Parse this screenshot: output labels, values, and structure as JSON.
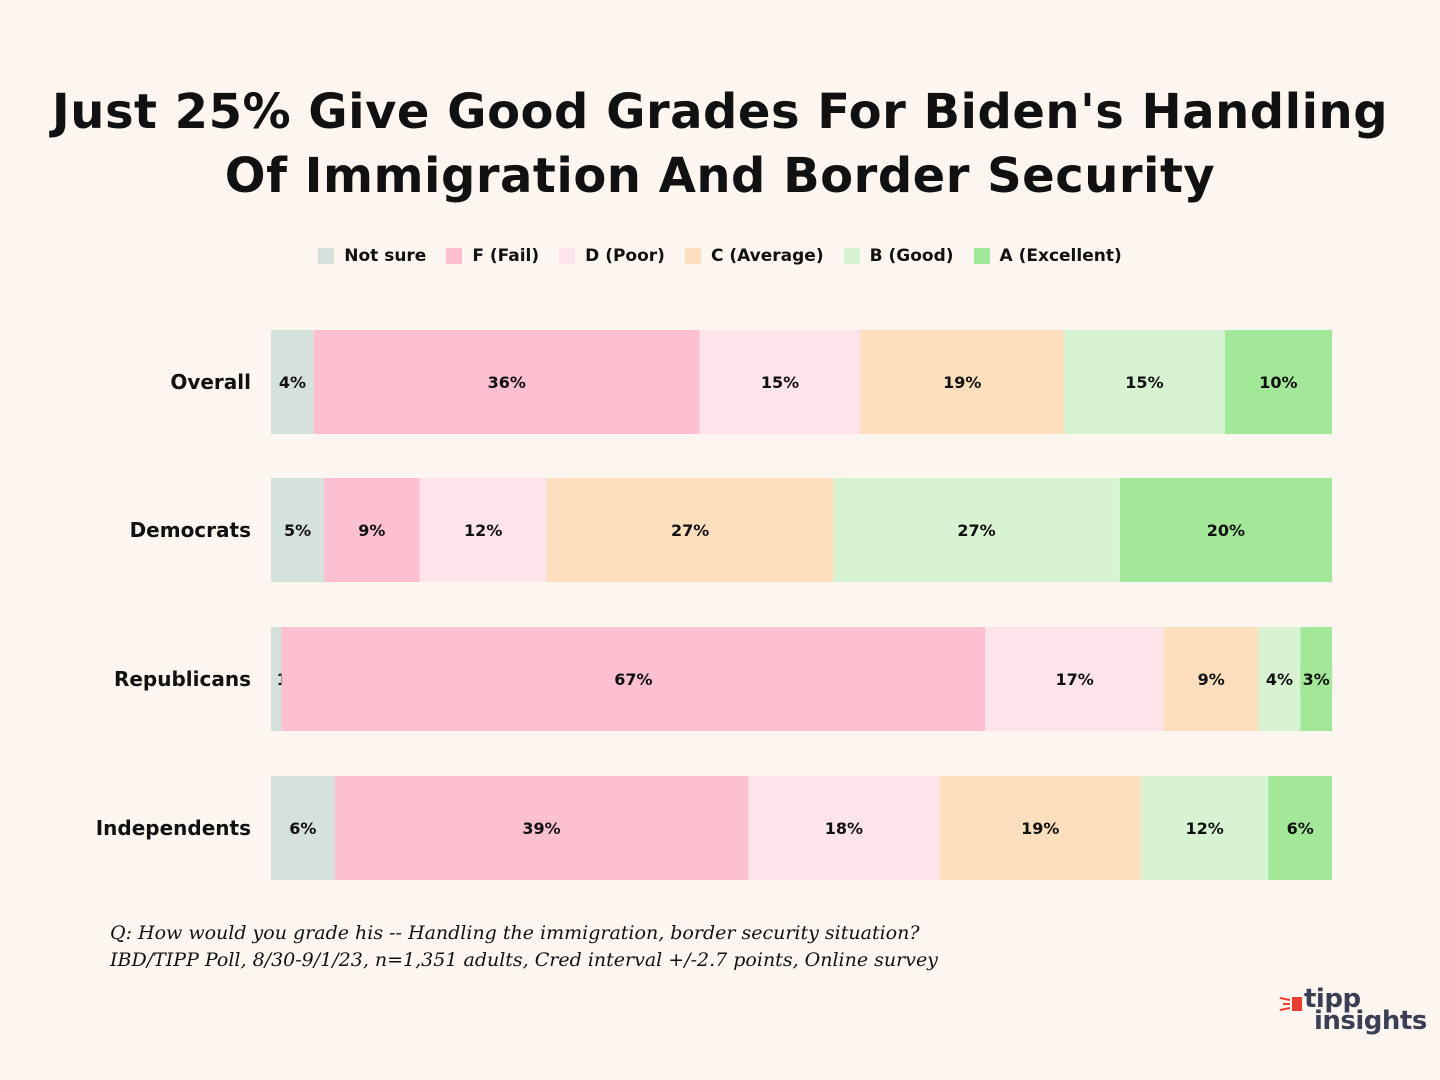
{
  "colors": {
    "background": "#fdf6f0",
    "not_sure": "#d5e1dc",
    "fail": "#fdc0d0",
    "poor": "#fde4ea",
    "average": "#fddfbd",
    "good": "#d7f3d2",
    "excellent": "#a3e898",
    "logo_text": "#3b3f56",
    "logo_mark": "#e8402f"
  },
  "chart_data": {
    "type": "bar",
    "orientation": "horizontal",
    "stacked": true,
    "title": "Just 25% Give Good Grades For Biden's Handling Of Immigration And Border Security",
    "title_lines": [
      "Just 25% Give Good Grades For Biden's Handling",
      "Of Immigration And Border Security"
    ],
    "categories": [
      "Overall",
      "Democrats",
      "Republicans",
      "Independents"
    ],
    "series": [
      {
        "name": "Not sure",
        "color": "#d5e1dc",
        "values": [
          4,
          5,
          1,
          6
        ]
      },
      {
        "name": "F (Fail)",
        "color": "#fdc0d0",
        "values": [
          36,
          9,
          67,
          39
        ]
      },
      {
        "name": "D (Poor)",
        "color": "#fde4ea",
        "values": [
          15,
          12,
          17,
          18
        ]
      },
      {
        "name": "C (Average)",
        "color": "#fddfbd",
        "values": [
          19,
          27,
          9,
          19
        ]
      },
      {
        "name": "B (Good)",
        "color": "#d7f3d2",
        "values": [
          15,
          27,
          4,
          12
        ]
      },
      {
        "name": "A (Excellent)",
        "color": "#a3e898",
        "values": [
          10,
          20,
          3,
          6
        ]
      }
    ],
    "value_suffix": "%",
    "legend_position": "top-center",
    "grid": false
  },
  "footnote": {
    "question": "Q:  How would you grade his -- Handling the immigration, border security situation?",
    "source": "IBD/TIPP Poll, 8/30-9/1/23, n=1,351 adults, Cred interval +/-2.7 points, Online survey"
  },
  "logo": {
    "top_text": "tipp",
    "bottom_text": "insights"
  }
}
